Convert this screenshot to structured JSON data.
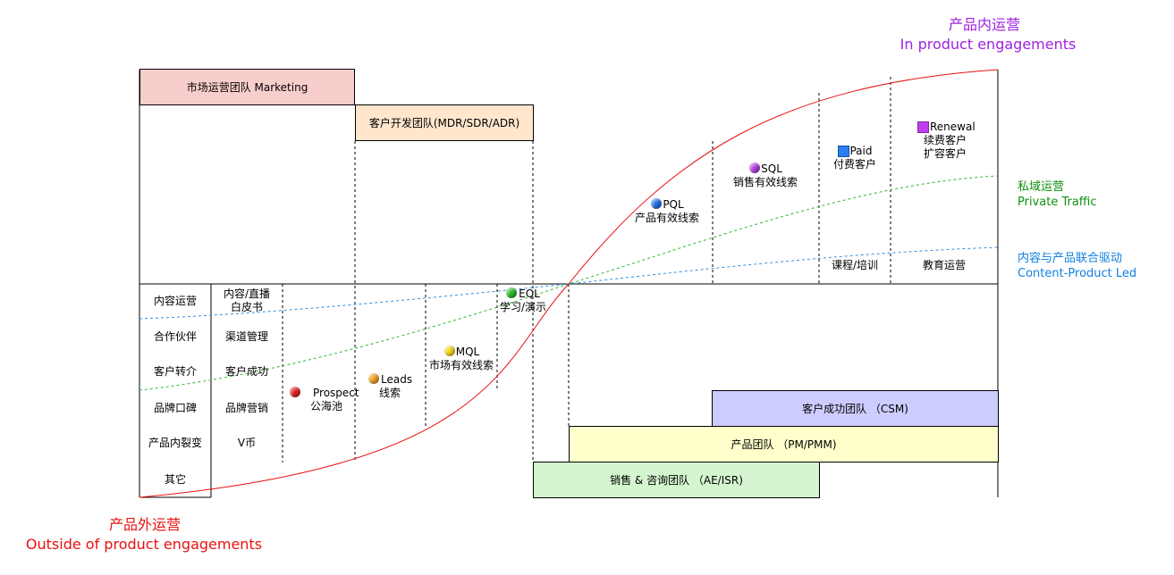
{
  "titles": {
    "in_cn": "产品内运营",
    "in_en": "In product engagements",
    "out_cn": "产品外运营",
    "out_en": "Outside of product engagements"
  },
  "teams": {
    "marketing": "市场运营团队 Marketing",
    "bizdev": "客户开发团队(MDR/SDR/ADR)",
    "csm": "客户成功团队 （CSM)",
    "product": "产品团队 （PM/PMM)",
    "sales": "销售 & 咨询团队 （AE/ISR)"
  },
  "side_labels": {
    "private_cn": "私域运营",
    "private_en": "Private Traffic",
    "content_cn": "内容与产品联合驱动",
    "content_en": "Content-Product Led"
  },
  "left_grid": {
    "col1": [
      "内容运营",
      "合作伙伴",
      "客户转介",
      "品牌口碑",
      "产品内裂变",
      "其它"
    ],
    "col2": [
      "内容/直播\n白皮书",
      "渠道管理",
      "客户成功",
      "品牌营销",
      "V币"
    ]
  },
  "upper_cells": {
    "course": "课程/培训",
    "education": "教育运营"
  },
  "stages": [
    {
      "id": "prospect",
      "label": "Prospect\n公海池",
      "color": "#e02020",
      "shape": "circle"
    },
    {
      "id": "leads",
      "label": "Leads\n线索",
      "color": "#f0a020",
      "shape": "circle"
    },
    {
      "id": "mql",
      "label": "MQL\n市场有效线索",
      "color": "#f2d81e",
      "shape": "circle"
    },
    {
      "id": "eql",
      "label": "EQL\n学习/演示",
      "color": "#28b828",
      "shape": "circle"
    },
    {
      "id": "pql",
      "label": "PQL\n产品有效线索",
      "color": "#1f6fe0",
      "shape": "circle"
    },
    {
      "id": "sql",
      "label": "SQL\n销售有效线索",
      "color": "#b040e0",
      "shape": "circle"
    },
    {
      "id": "paid",
      "label": "Paid\n付费客户",
      "color": "#2a7ef0",
      "shape": "square"
    },
    {
      "id": "renewal",
      "label": "Renewal\n续费客户\n扩容客户",
      "color": "#c040f0",
      "shape": "square"
    }
  ],
  "colors": {
    "marketing_fill": "#f8cecc",
    "bizdev_fill": "#ffe6cc",
    "csm_fill": "#ccccff",
    "product_fill": "#ffffcc",
    "sales_fill": "#d5f5d0",
    "in_title": "#a020e0",
    "out_title": "#e81010",
    "private": "#109010",
    "content": "#1080e0",
    "s_curve": "#e81010",
    "private_curve": "#30b830",
    "content_curve": "#3090e0"
  }
}
